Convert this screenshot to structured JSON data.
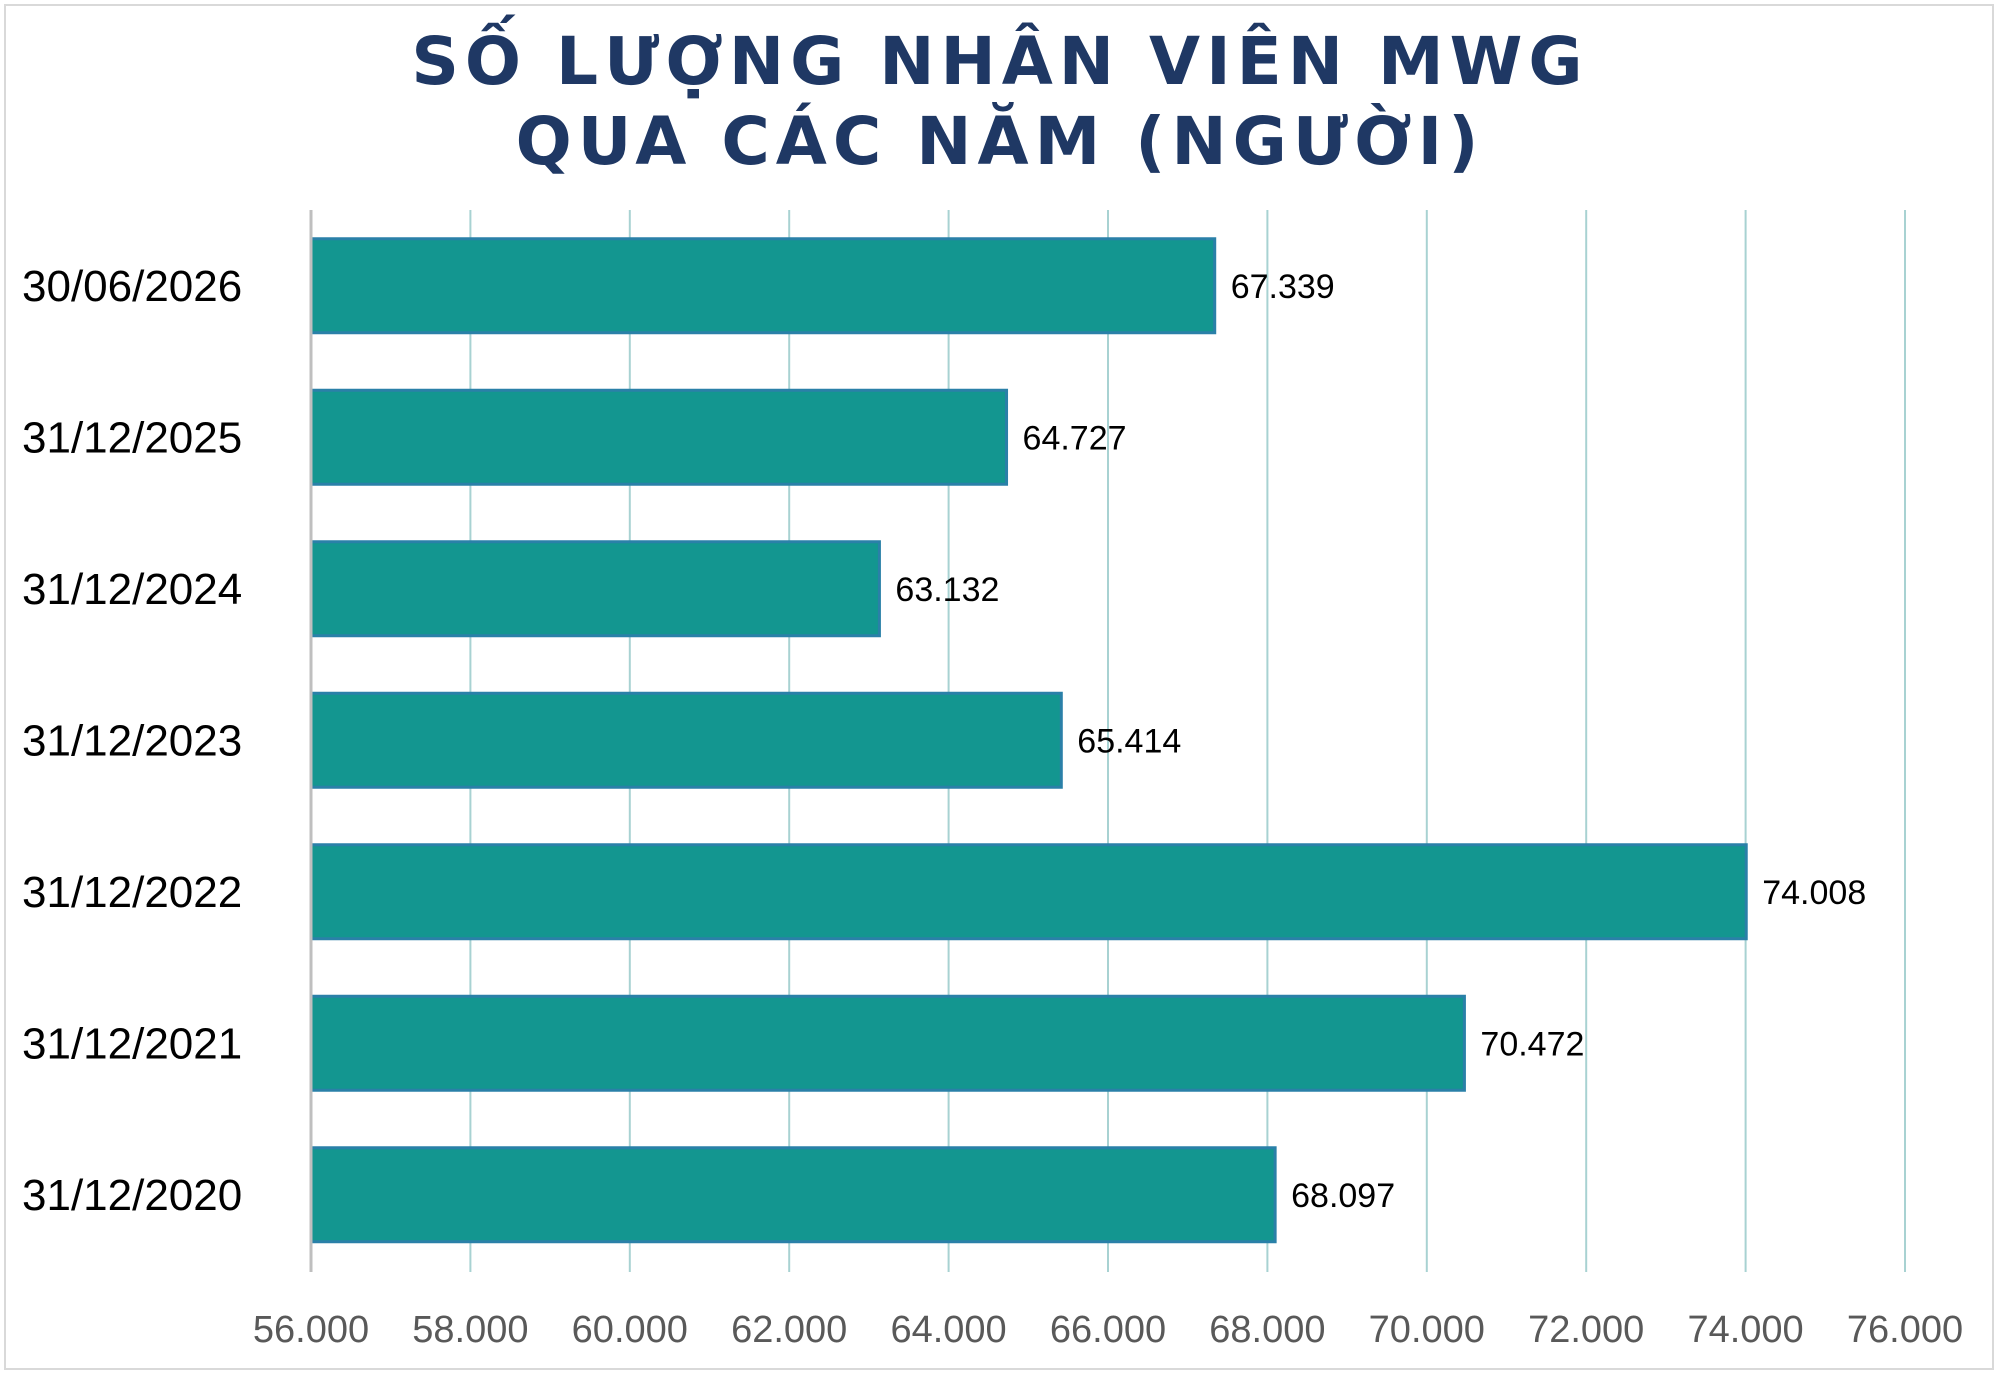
{
  "chart_data": {
    "type": "bar",
    "orientation": "horizontal",
    "title": [
      "SỐ LƯỢNG NHÂN VIÊN MWG",
      "QUA CÁC NĂM (NGƯỜI)"
    ],
    "categories": [
      "30/06/2026",
      "31/12/2025",
      "31/12/2024",
      "31/12/2023",
      "31/12/2022",
      "31/12/2021",
      "31/12/2020"
    ],
    "values": [
      67339,
      64727,
      63132,
      65414,
      74008,
      70472,
      68097
    ],
    "value_labels": [
      "67.339",
      "64.727",
      "63.132",
      "65.414",
      "74.008",
      "70.472",
      "68.097"
    ],
    "xlim": [
      56000,
      76000
    ],
    "xticks": [
      56000,
      58000,
      60000,
      62000,
      64000,
      66000,
      68000,
      70000,
      72000,
      74000,
      76000
    ],
    "xtick_labels": [
      "56.000",
      "58.000",
      "60.000",
      "62.000",
      "64.000",
      "66.000",
      "68.000",
      "70.000",
      "72.000",
      "74.000",
      "76.000"
    ],
    "xlabel": "",
    "ylabel": "",
    "grid": "vertical",
    "legend": "none",
    "colors": {
      "bar_fill": "#139690",
      "bar_edge": "#2a80a8",
      "grid": "#a8d2d2",
      "axis": "#bfbfbf",
      "title": "#1f3864"
    }
  }
}
